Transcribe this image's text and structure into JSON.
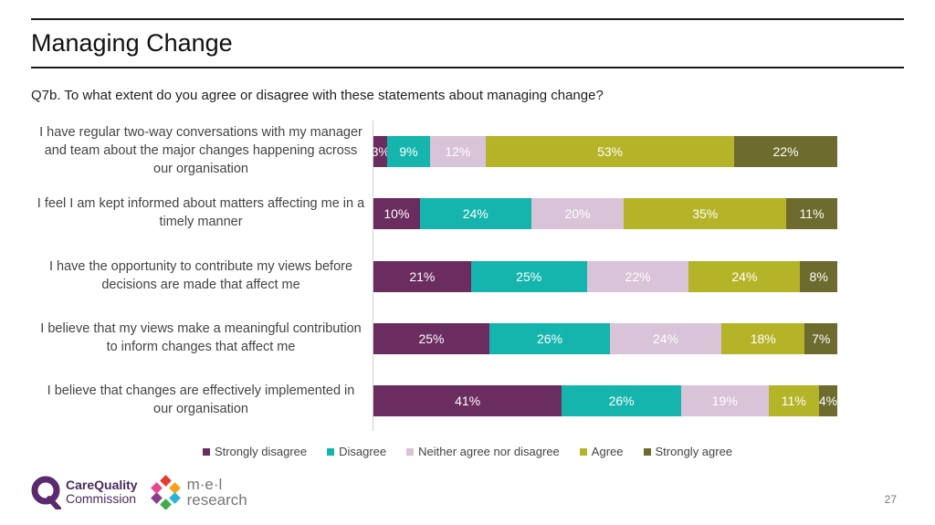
{
  "slide": {
    "title": "Managing Change",
    "question": "Q7b. To what extent do you agree or disagree with these statements about managing change?",
    "page_number": "27"
  },
  "logos": {
    "cqc_text_line1": "CareQuality",
    "cqc_text_line2": "Commission",
    "mel_text_line1": "m·e·l",
    "mel_text_line2": "research"
  },
  "colors": {
    "strongly_disagree": "#6b2c5f",
    "disagree": "#15b5ad",
    "neither": "#d8c3d8",
    "agree": "#b5b429",
    "strongly_agree": "#6d6b2d"
  },
  "chart_data": {
    "type": "bar",
    "orientation": "horizontal",
    "stacked": true,
    "categories": [
      "I have regular two-way conversations with my manager and team about the major changes happening across our organisation",
      "I feel I am kept informed about matters affecting me in a timely manner",
      "I have the opportunity to contribute my views before decisions are made that affect me",
      "I believe that my views make a meaningful contribution to inform changes that affect me",
      "I believe that changes are effectively implemented in our organisation"
    ],
    "series": [
      {
        "name": "Strongly disagree",
        "values": [
          3,
          10,
          21,
          25,
          41
        ]
      },
      {
        "name": "Disagree",
        "values": [
          9,
          24,
          25,
          26,
          26
        ]
      },
      {
        "name": "Neither agree nor disagree",
        "values": [
          12,
          20,
          22,
          24,
          19
        ]
      },
      {
        "name": "Agree",
        "values": [
          53,
          35,
          24,
          18,
          11
        ]
      },
      {
        "name": "Strongly agree",
        "values": [
          22,
          11,
          8,
          7,
          4
        ]
      }
    ],
    "value_suffix": "%",
    "legend_position": "bottom"
  }
}
